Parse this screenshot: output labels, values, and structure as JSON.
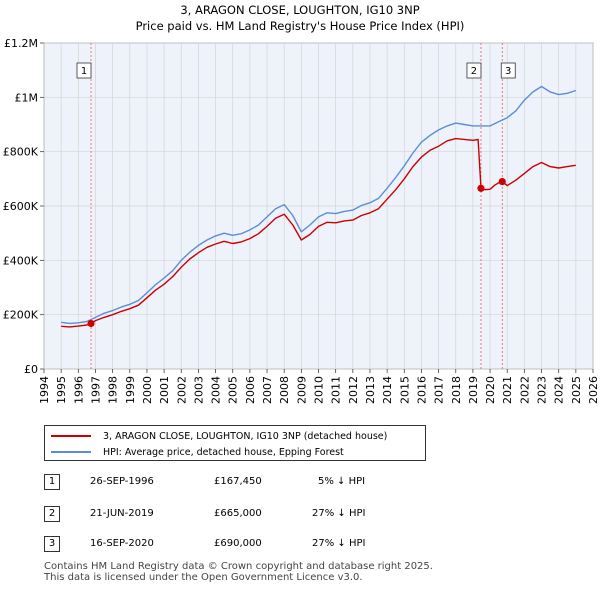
{
  "colors": {
    "property": "#cc0000",
    "hpi": "#5b8ed6",
    "grid": "#d4d4d4",
    "plot_bg": "#eef2fa",
    "marker_line": "#e06060"
  },
  "chart_data": {
    "type": "line",
    "title": "3, ARAGON CLOSE, LOUGHTON, IG10 3NP",
    "subtitle": "Price paid vs. HM Land Registry's House Price Index (HPI)",
    "xlabel": "",
    "ylabel": "",
    "xlim": [
      1994,
      2026
    ],
    "ylim": [
      0,
      1200000
    ],
    "y_ticks": [
      {
        "value": 0,
        "label": "£0"
      },
      {
        "value": 200000,
        "label": "£200K"
      },
      {
        "value": 400000,
        "label": "£400K"
      },
      {
        "value": 600000,
        "label": "£600K"
      },
      {
        "value": 800000,
        "label": "£800K"
      },
      {
        "value": 1000000,
        "label": "£1M"
      },
      {
        "value": 1200000,
        "label": "£1.2M"
      }
    ],
    "x_ticks": [
      "1994",
      "1995",
      "1996",
      "1997",
      "1998",
      "1999",
      "2000",
      "2001",
      "2002",
      "2003",
      "2004",
      "2005",
      "2006",
      "2007",
      "2008",
      "2009",
      "2010",
      "2011",
      "2012",
      "2013",
      "2014",
      "2015",
      "2016",
      "2017",
      "2018",
      "2019",
      "2020",
      "2021",
      "2022",
      "2023",
      "2024",
      "2025",
      "2026"
    ],
    "grid": true,
    "series": [
      {
        "name": "3, ARAGON CLOSE, LOUGHTON, IG10 3NP (detached house)",
        "color": "#cc0000",
        "x": [
          1995.0,
          1995.5,
          1996.0,
          1996.5,
          1996.74,
          1997.0,
          1997.5,
          1998.0,
          1998.5,
          1999.0,
          1999.5,
          2000.0,
          2000.5,
          2001.0,
          2001.5,
          2002.0,
          2002.5,
          2003.0,
          2003.5,
          2004.0,
          2004.5,
          2005.0,
          2005.5,
          2006.0,
          2006.5,
          2007.0,
          2007.5,
          2008.0,
          2008.5,
          2009.0,
          2009.5,
          2010.0,
          2010.5,
          2011.0,
          2011.5,
          2012.0,
          2012.5,
          2013.0,
          2013.5,
          2014.0,
          2014.5,
          2015.0,
          2015.5,
          2016.0,
          2016.5,
          2017.0,
          2017.5,
          2018.0,
          2018.5,
          2019.0,
          2019.3,
          2019.47,
          2019.7,
          2020.0,
          2020.3,
          2020.5,
          2020.71,
          2021.0,
          2021.5,
          2022.0,
          2022.5,
          2023.0,
          2023.5,
          2024.0,
          2024.5,
          2025.0
        ],
        "values": [
          157000,
          155000,
          158000,
          162000,
          167450,
          178000,
          190000,
          200000,
          212000,
          222000,
          235000,
          262000,
          290000,
          312000,
          340000,
          375000,
          405000,
          428000,
          448000,
          460000,
          470000,
          462000,
          468000,
          480000,
          498000,
          525000,
          555000,
          570000,
          530000,
          475000,
          495000,
          525000,
          540000,
          538000,
          545000,
          548000,
          565000,
          575000,
          590000,
          625000,
          660000,
          700000,
          745000,
          780000,
          805000,
          820000,
          840000,
          848000,
          845000,
          842000,
          845000,
          665000,
          660000,
          662000,
          678000,
          685000,
          690000,
          675000,
          695000,
          720000,
          745000,
          760000,
          745000,
          740000,
          745000,
          750000
        ]
      },
      {
        "name": "HPI: Average price, detached house, Epping Forest",
        "color": "#5b8ed6",
        "x": [
          1995.0,
          1995.5,
          1996.0,
          1996.5,
          1997.0,
          1997.5,
          1998.0,
          1998.5,
          1999.0,
          1999.5,
          2000.0,
          2000.5,
          2001.0,
          2001.5,
          2002.0,
          2002.5,
          2003.0,
          2003.5,
          2004.0,
          2004.5,
          2005.0,
          2005.5,
          2006.0,
          2006.5,
          2007.0,
          2007.5,
          2008.0,
          2008.5,
          2009.0,
          2009.5,
          2010.0,
          2010.5,
          2011.0,
          2011.5,
          2012.0,
          2012.5,
          2013.0,
          2013.5,
          2014.0,
          2014.5,
          2015.0,
          2015.5,
          2016.0,
          2016.5,
          2017.0,
          2017.5,
          2018.0,
          2018.5,
          2019.0,
          2019.5,
          2020.0,
          2020.5,
          2021.0,
          2021.5,
          2022.0,
          2022.5,
          2023.0,
          2023.5,
          2024.0,
          2024.5,
          2025.0
        ],
        "values": [
          172000,
          168000,
          170000,
          175000,
          190000,
          205000,
          215000,
          228000,
          238000,
          252000,
          280000,
          310000,
          335000,
          362000,
          400000,
          430000,
          455000,
          475000,
          490000,
          500000,
          492000,
          498000,
          512000,
          530000,
          560000,
          590000,
          605000,
          565000,
          505000,
          530000,
          560000,
          575000,
          572000,
          580000,
          585000,
          602000,
          612000,
          628000,
          665000,
          705000,
          748000,
          795000,
          835000,
          860000,
          880000,
          895000,
          905000,
          900000,
          895000,
          895000,
          895000,
          910000,
          925000,
          950000,
          990000,
          1020000,
          1040000,
          1020000,
          1010000,
          1015000,
          1025000
        ]
      }
    ],
    "annotations": [
      {
        "label": "1",
        "x": 1996.74,
        "value": 167450
      },
      {
        "label": "2",
        "x": 2019.47,
        "value": 665000
      },
      {
        "label": "3",
        "x": 2020.71,
        "value": 690000
      }
    ]
  },
  "legend": {
    "property_label": "3, ARAGON CLOSE, LOUGHTON, IG10 3NP (detached house)",
    "hpi_label": "HPI: Average price, detached house, Epping Forest"
  },
  "transactions": [
    {
      "num": "1",
      "date": "26-SEP-1996",
      "price": "£167,450",
      "pct": "5% ↓ HPI"
    },
    {
      "num": "2",
      "date": "21-JUN-2019",
      "price": "£665,000",
      "pct": "27% ↓ HPI"
    },
    {
      "num": "3",
      "date": "16-SEP-2020",
      "price": "£690,000",
      "pct": "27% ↓ HPI"
    }
  ],
  "footer": {
    "line1": "Contains HM Land Registry data © Crown copyright and database right 2025.",
    "line2": "This data is licensed under the Open Government Licence v3.0."
  }
}
